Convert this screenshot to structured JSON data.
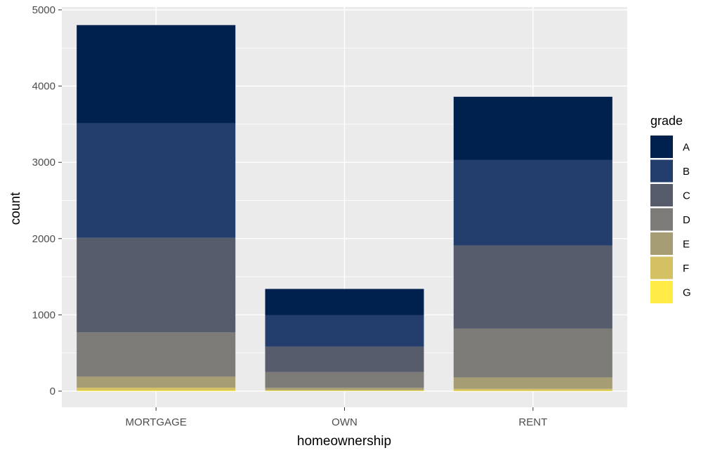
{
  "chart_data": {
    "type": "bar",
    "stacked": true,
    "xlabel": "homeownership",
    "ylabel": "count",
    "categories": [
      "MORTGAGE",
      "OWN",
      "RENT"
    ],
    "ylim": [
      0,
      5000
    ],
    "yticks": [
      0,
      1000,
      2000,
      3000,
      4000,
      5000
    ],
    "grid": true,
    "legend": {
      "title": "grade",
      "position": "right"
    },
    "series": [
      {
        "name": "A",
        "color": "#00204D",
        "values": [
          1290,
          345,
          830
        ]
      },
      {
        "name": "B",
        "color": "#233D6D",
        "values": [
          1500,
          410,
          1120
        ]
      },
      {
        "name": "C",
        "color": "#575C6D",
        "values": [
          1240,
          335,
          1090
        ]
      },
      {
        "name": "D",
        "color": "#7C7B78",
        "values": [
          580,
          205,
          640
        ]
      },
      {
        "name": "E",
        "color": "#A69D75",
        "values": [
          145,
          30,
          150
        ]
      },
      {
        "name": "F",
        "color": "#D3C164",
        "values": [
          35,
          10,
          25
        ]
      },
      {
        "name": "G",
        "color": "#FFEA46",
        "values": [
          10,
          5,
          5
        ]
      }
    ]
  }
}
